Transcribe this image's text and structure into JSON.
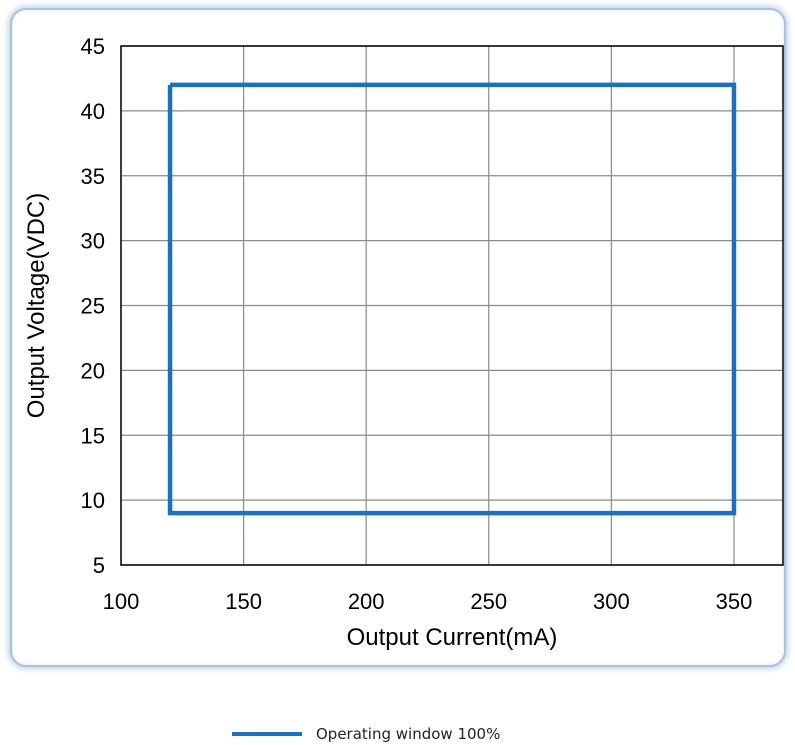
{
  "chart_data": {
    "type": "line",
    "xlabel": "Output Current(mA)",
    "ylabel": "Output Voltage(VDC)",
    "xlim": [
      100,
      370
    ],
    "ylim": [
      5,
      45
    ],
    "x_ticks": [
      100,
      150,
      200,
      250,
      300,
      350
    ],
    "y_ticks": [
      5,
      10,
      15,
      20,
      25,
      30,
      35,
      40,
      45
    ],
    "grid": true,
    "legend_position": "bottom-center",
    "series": [
      {
        "name": "Operating window 100%",
        "color": "#1f6fbf",
        "x": [
          120,
          350,
          350,
          120,
          120
        ],
        "y": [
          42,
          42,
          9,
          9,
          42
        ]
      }
    ]
  }
}
